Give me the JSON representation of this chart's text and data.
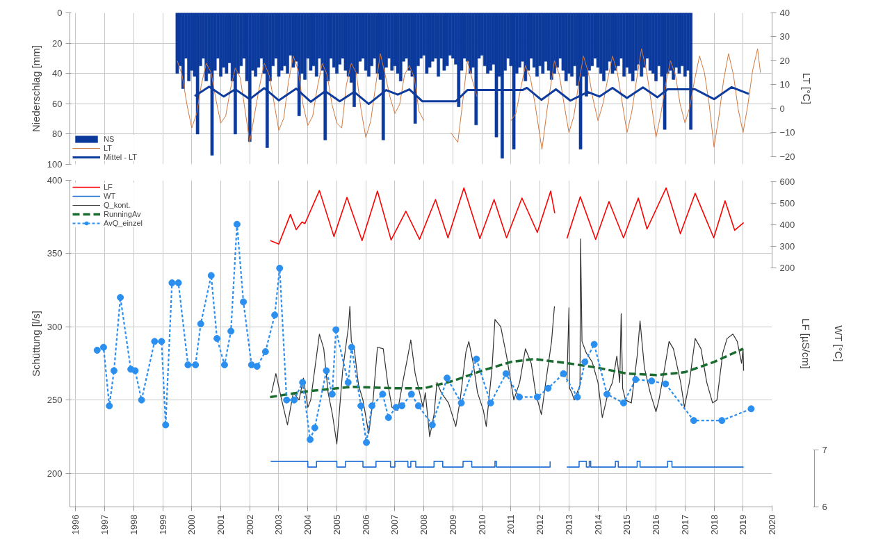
{
  "chart_data": [
    {
      "type": "line",
      "ylabel": "Niederschlag [mm]",
      "y2label": "LT [°C]",
      "xlim": [
        1995.8,
        2020
      ],
      "xticks": [
        1996,
        1997,
        1998,
        1999,
        2000,
        2001,
        2002,
        2003,
        2004,
        2005,
        2006,
        2007,
        2008,
        2009,
        2010,
        2011,
        2012,
        2013,
        2014,
        2015,
        2016,
        2017,
        2018,
        2019,
        2020
      ],
      "ylim": [
        100,
        0
      ],
      "yticks": [
        0,
        20,
        40,
        60,
        80,
        100
      ],
      "y2lim": [
        -23.2,
        40
      ],
      "y2ticks": [
        -20,
        -10,
        0,
        10,
        20,
        30,
        40
      ],
      "tick_labels": "y",
      "grid": true,
      "legend": "bottom left",
      "series": [
        {
          "name": "NS",
          "type": "bar",
          "color": "#0b3a9c",
          "x": [
            1999.5,
            1999.6,
            1999.7,
            1999.8,
            1999.9,
            2000.0,
            2000.1,
            2000.2,
            2000.3,
            2000.4,
            2000.5,
            2000.6,
            2000.7,
            2000.8,
            2000.9,
            2001.0,
            2001.1,
            2001.2,
            2001.3,
            2001.4,
            2001.5,
            2001.6,
            2001.7,
            2001.8,
            2001.9,
            2002.0,
            2002.1,
            2002.2,
            2002.3,
            2002.4,
            2002.5,
            2002.6,
            2002.7,
            2002.8,
            2002.9,
            2003.0,
            2003.1,
            2003.2,
            2003.3,
            2003.4,
            2003.5,
            2003.6,
            2003.7,
            2003.8,
            2003.9,
            2004.0,
            2004.1,
            2004.2,
            2004.3,
            2004.4,
            2004.5,
            2004.6,
            2004.7,
            2004.8,
            2004.9,
            2005.0,
            2005.1,
            2005.2,
            2005.3,
            2005.4,
            2005.5,
            2005.6,
            2005.7,
            2005.8,
            2005.9,
            2006.0,
            2006.1,
            2006.2,
            2006.3,
            2006.4,
            2006.5,
            2006.6,
            2006.7,
            2006.8,
            2006.9,
            2007.0,
            2007.1,
            2007.2,
            2007.3,
            2007.4,
            2007.5,
            2007.6,
            2007.7,
            2007.8,
            2007.9,
            2008.0,
            2008.1,
            2008.2,
            2008.3,
            2008.4,
            2008.5,
            2008.6,
            2008.7,
            2008.8,
            2008.9,
            2009.0,
            2009.1,
            2009.2,
            2009.3,
            2009.4,
            2009.5,
            2009.6,
            2009.7,
            2009.8,
            2009.9,
            2010.0,
            2010.1,
            2010.2,
            2010.3,
            2010.4,
            2010.5,
            2010.6,
            2010.7,
            2010.8,
            2010.9,
            2011.0,
            2011.1,
            2011.2,
            2011.3,
            2011.4,
            2011.5,
            2011.6,
            2011.7,
            2011.8,
            2011.9,
            2012.0,
            2012.1,
            2012.2,
            2012.3,
            2012.4,
            2012.5,
            2012.6,
            2012.7,
            2012.8,
            2012.9,
            2013.0,
            2013.1,
            2013.2,
            2013.3,
            2013.4,
            2013.5,
            2013.6,
            2013.7,
            2013.8,
            2013.9,
            2014.0,
            2014.1,
            2014.2,
            2014.3,
            2014.4,
            2014.5,
            2014.6,
            2014.7,
            2014.8,
            2014.9,
            2015.0,
            2015.1,
            2015.2,
            2015.3,
            2015.4,
            2015.5,
            2015.6,
            2015.7,
            2015.8,
            2015.9,
            2016.0,
            2016.1,
            2016.2,
            2016.3,
            2016.4,
            2016.5,
            2016.6,
            2016.7,
            2016.8,
            2016.9,
            2017.0,
            2017.1,
            2017.2
          ],
          "values": [
            40,
            35,
            50,
            30,
            45,
            38,
            42,
            80,
            35,
            30,
            45,
            40,
            94,
            38,
            30,
            42,
            36,
            40,
            33,
            45,
            80,
            40,
            35,
            30,
            45,
            85,
            38,
            42,
            36,
            30,
            40,
            89,
            45,
            35,
            30,
            42,
            38,
            35,
            40,
            28,
            36,
            32,
            68,
            40,
            44,
            30,
            38,
            35,
            42,
            30,
            38,
            84,
            45,
            30,
            36,
            40,
            34,
            30,
            38,
            42,
            46,
            62,
            40,
            32,
            30,
            38,
            42,
            35,
            30,
            40,
            44,
            84,
            36,
            30,
            38,
            35,
            40,
            45,
            32,
            30,
            38,
            42,
            73,
            35,
            30,
            28,
            40,
            36,
            32,
            30,
            42,
            30,
            38,
            35,
            28,
            30,
            34,
            62,
            38,
            30,
            32,
            40,
            36,
            74,
            30,
            28,
            35,
            40,
            38,
            34,
            82,
            42,
            96,
            38,
            30,
            35,
            90,
            40,
            36,
            32,
            45,
            38,
            30,
            36,
            42,
            35,
            40,
            32,
            38,
            44,
            40,
            36,
            30,
            38,
            45,
            40,
            42,
            35,
            48,
            90,
            42,
            55,
            38,
            35,
            30,
            36,
            40,
            45,
            38,
            32,
            40,
            38,
            35,
            30,
            42,
            36,
            40,
            45,
            38,
            34,
            42,
            36,
            30,
            38,
            40,
            45,
            35,
            42,
            77,
            40,
            38,
            44,
            36,
            40,
            35,
            42,
            38,
            77
          ]
        },
        {
          "name": "LT",
          "axis": "y2",
          "color": "#d2783f",
          "line_style": "solid",
          "x": [
            1999.5,
            1999.67,
            1999.83,
            2000.0,
            2000.17,
            2000.33,
            2000.5,
            2000.67,
            2000.83,
            2001.0,
            2001.17,
            2001.33,
            2001.5,
            2001.67,
            2001.83,
            2002.0,
            2002.17,
            2002.33,
            2002.5,
            2002.67,
            2002.83,
            2003.0,
            2003.17,
            2003.33,
            2003.5,
            2003.67,
            2003.83,
            2004.0,
            2004.17,
            2004.33,
            2004.5,
            2004.67,
            2004.83,
            2005.0,
            2005.17,
            2005.33,
            2005.5,
            2005.67,
            2005.83,
            2006.0,
            2006.17,
            2006.33,
            2006.5,
            2006.67,
            2006.83,
            2007.0,
            2007.17,
            2007.33,
            2007.5,
            2007.67,
            2007.83,
            2008.0,
            2008.5,
            2008.93,
            2009.17,
            2009.33,
            2009.5,
            2009.67,
            2009.83,
            2010.4,
            2011.0,
            2011.17,
            2011.33,
            2011.5,
            2011.67,
            2011.83,
            2012.07,
            2012.25,
            2012.5,
            2012.67,
            2012.83,
            2013.0,
            2013.17,
            2013.33,
            2013.5,
            2013.67,
            2013.83,
            2014.0,
            2014.17,
            2014.33,
            2014.5,
            2014.67,
            2014.83,
            2015.0,
            2015.17,
            2015.33,
            2015.5,
            2015.67,
            2015.83,
            2016.0,
            2016.17,
            2016.33,
            2016.5,
            2016.67,
            2016.83,
            2017.0,
            2017.17,
            2017.33,
            2017.5,
            2017.67,
            2017.83,
            2018.0,
            2018.17,
            2018.33,
            2018.5,
            2018.67,
            2018.83,
            2019.0,
            2019.17,
            2019.33,
            2019.5,
            2019.6
          ],
          "values": [
            20,
            14,
            2,
            -8,
            -2,
            10,
            19,
            15,
            4,
            -6,
            -3,
            8,
            17,
            13,
            0,
            -14,
            -2,
            9,
            19,
            14,
            3,
            -9,
            -4,
            11,
            22,
            16,
            2,
            -7,
            -3,
            9,
            19,
            14,
            2,
            -6,
            -8,
            10,
            19,
            15,
            0,
            -12,
            -5,
            9,
            23,
            14,
            5,
            -2,
            2,
            14,
            18,
            13,
            -1,
            -5,
            null,
            -10,
            -14,
            2,
            20,
            12,
            5,
            null,
            -5,
            -2,
            8,
            18,
            13,
            2,
            -17,
            0,
            20,
            14,
            2,
            -10,
            -3,
            10,
            22,
            15,
            4,
            -5,
            2,
            12,
            22,
            15,
            3,
            -10,
            -1,
            12,
            25,
            16,
            3,
            -12,
            -2,
            10,
            20,
            14,
            2,
            -6,
            1,
            12,
            22,
            15,
            2,
            -16,
            -3,
            12,
            23,
            14,
            0,
            -10,
            2,
            16,
            25,
            15
          ]
        },
        {
          "name": "Mittel - LT",
          "axis": "y2",
          "color": "#0d3b9e",
          "line_style": "solid",
          "x": [
            2000.1,
            2000.6,
            2001.1,
            2001.5,
            2002.0,
            2002.5,
            2003.0,
            2003.6,
            2004.1,
            2004.6,
            2005.1,
            2005.6,
            2006.1,
            2006.7,
            2007.1,
            2007.5,
            2007.95,
            2009.1,
            2009.5,
            2011.4,
            2011.55,
            2012.05,
            2012.55,
            2013.05,
            2013.65,
            2014.05,
            2014.5,
            2015.0,
            2015.55,
            2016.05,
            2016.4,
            2017.35,
            2018.0,
            2018.6,
            2019.2
          ],
          "values": [
            5.3,
            9.2,
            5.1,
            8.1,
            4.0,
            8.6,
            3.5,
            8.4,
            2.9,
            7.3,
            3.1,
            7.0,
            2.0,
            7.8,
            5.9,
            8.1,
            3.1,
            3.1,
            7.8,
            7.8,
            8.7,
            3.7,
            8.1,
            3.4,
            7.0,
            5.1,
            8.7,
            4.5,
            8.9,
            4.8,
            8.1,
            8.1,
            4.0,
            9.0,
            6.2
          ]
        }
      ]
    },
    {
      "type": "line",
      "ylabel": "Schüttung [l/s]",
      "y2label": "LF [µS/cm]",
      "y3label": "WT [°C]",
      "xlim": [
        1995.8,
        2020
      ],
      "xticks": [
        1996,
        1997,
        1998,
        1999,
        2000,
        2001,
        2002,
        2003,
        2004,
        2005,
        2006,
        2007,
        2008,
        2009,
        2010,
        2011,
        2012,
        2013,
        2014,
        2015,
        2016,
        2017,
        2018,
        2019,
        2020
      ],
      "ylim": [
        177,
        400
      ],
      "yticks": [
        200,
        250,
        300,
        350,
        400
      ],
      "y2lim": [
        -905,
        606
      ],
      "y2ticks": [
        200,
        300,
        400,
        500,
        600
      ],
      "y3lim": [
        6,
        11.73
      ],
      "y3ticks": [
        6,
        7
      ],
      "grid": true,
      "legend": "top left",
      "series": [
        {
          "name": "LF",
          "axis": "y2",
          "color": "#ff0000",
          "line_style": "solid",
          "x": [
            2002.71,
            2003.0,
            2003.4,
            2003.6,
            2003.8,
            2003.9,
            2004.4,
            2004.9,
            2005.35,
            2005.87,
            2006.4,
            2006.87,
            2007.38,
            2007.85,
            2008.4,
            2008.83,
            2009.38,
            2009.93,
            2010.42,
            2010.85,
            2011.38,
            2011.91,
            2012.37,
            2012.51,
            2012.7,
            2012.93,
            2013.39,
            2013.92,
            2014.38,
            2014.88,
            2015.39,
            2015.69,
            2016.35,
            2016.84,
            2017.35,
            2017.99,
            2018.38,
            2018.71,
            2019.02
          ],
          "values": [
            327,
            311,
            448,
            378,
            413,
            406,
            559,
            346,
            527,
            327,
            556,
            330,
            463,
            333,
            517,
            340,
            571,
            337,
            517,
            340,
            524,
            365,
            556,
            454,
            null,
            337,
            530,
            333,
            508,
            340,
            524,
            381,
            571,
            359,
            546,
            340,
            511,
            375,
            410
          ]
        },
        {
          "name": "WT",
          "type": "step",
          "axis": "y3",
          "color": "#1f6fd6",
          "line_style": "solid",
          "x": [
            2002.72,
            2004.0,
            2004.3,
            2005.0,
            2005.3,
            2005.9,
            2006.35,
            2006.85,
            2007.0,
            2007.45,
            2007.55,
            2007.72,
            2008.35,
            2008.65,
            2009.35,
            2009.65,
            2010.45,
            2010.5,
            2012.35,
            2012.5,
            2012.93,
            2013.35,
            2013.6,
            2013.7,
            2013.75,
            2014.6,
            2014.7,
            2015.35,
            2015.45,
            2016.4,
            2016.55,
            2019.02
          ],
          "values": [
            6.8,
            6.7,
            6.8,
            6.7,
            6.8,
            6.7,
            6.8,
            6.7,
            6.8,
            6.7,
            6.8,
            6.7,
            6.8,
            6.7,
            6.8,
            6.7,
            6.8,
            6.7,
            6.8,
            null,
            6.7,
            6.8,
            6.7,
            6.8,
            6.7,
            6.8,
            6.7,
            6.8,
            6.7,
            6.8,
            6.7,
            6.7
          ]
        },
        {
          "name": "Q_kont.",
          "color": "#333333",
          "line_style": "solid",
          "x": [
            2002.75,
            2002.9,
            2003.1,
            2003.3,
            2003.5,
            2003.7,
            2003.85,
            2004.0,
            2004.1,
            2004.4,
            2004.55,
            2004.7,
            2004.85,
            2005.0,
            2005.2,
            2005.4,
            2005.45,
            2005.5,
            2005.6,
            2005.75,
            2005.9,
            2006.1,
            2006.25,
            2006.4,
            2006.6,
            2006.75,
            2006.9,
            2007.1,
            2007.3,
            2007.4,
            2007.55,
            2007.7,
            2007.97,
            2008.05,
            2008.2,
            2008.35,
            2008.45,
            2008.6,
            2008.85,
            2009.1,
            2009.25,
            2009.45,
            2009.55,
            2009.7,
            2009.85,
            2010.05,
            2010.15,
            2010.35,
            2010.45,
            2010.65,
            2010.85,
            2011.0,
            2011.1,
            2011.3,
            2011.5,
            2011.7,
            2011.85,
            2012.05,
            2012.2,
            2012.4,
            2012.5,
            2012.7,
            2012.93,
            2013.0,
            2013.02,
            2013.1,
            2013.18,
            2013.38,
            2013.4,
            2013.45,
            2013.6,
            2013.8,
            2014.0,
            2014.15,
            2014.35,
            2014.5,
            2014.65,
            2014.75,
            2014.8,
            2014.85,
            2014.95,
            2015.15,
            2015.35,
            2015.45,
            2015.6,
            2015.8,
            2016.0,
            2016.1,
            2016.3,
            2016.45,
            2016.6,
            2016.85,
            2016.98,
            2017.15,
            2017.35,
            2017.55,
            2017.75,
            2017.95,
            2018.1,
            2018.3,
            2018.45,
            2018.65,
            2018.8,
            2018.95,
            2019.0,
            2019.02
          ],
          "values": [
            255,
            268,
            250,
            233,
            255,
            250,
            265,
            245,
            250,
            295,
            285,
            255,
            240,
            220,
            270,
            300,
            314,
            290,
            285,
            260,
            250,
            227,
            250,
            286,
            285,
            262,
            245,
            243,
            265,
            275,
            291,
            268,
            245,
            255,
            225,
            240,
            262,
            255,
            248,
            232,
            250,
            283,
            290,
            275,
            255,
            243,
            232,
            272,
            305,
            300,
            280,
            262,
            250,
            262,
            285,
            275,
            255,
            240,
            262,
            290,
            314,
            null,
            262,
            313,
            258,
            255,
            250,
            260,
            360,
            290,
            282,
            276,
            262,
            238,
            255,
            262,
            280,
            262,
            309,
            258,
            250,
            248,
            280,
            304,
            272,
            255,
            242,
            250,
            272,
            290,
            285,
            262,
            245,
            262,
            292,
            285,
            262,
            248,
            250,
            282,
            292,
            295,
            290,
            275,
            285,
            270
          ]
        },
        {
          "name": "RunningAv",
          "color": "#1a6b30",
          "line_style": "dashed",
          "x": [
            2002.7,
            2004,
            2005.5,
            2007,
            2008,
            2009,
            2010,
            2011,
            2011.8,
            2013,
            2014,
            2015,
            2016,
            2017,
            2018,
            2019
          ],
          "values": [
            252,
            256,
            259,
            258,
            258,
            263,
            270,
            276,
            278,
            275,
            272,
            268,
            267,
            269,
            276,
            285
          ]
        },
        {
          "name": "AvQ_einzel",
          "color": "#2b8ff0",
          "line_style": "dotted",
          "marker": "circle",
          "x": [
            1996.74,
            1996.96,
            1997.16,
            1997.32,
            1997.54,
            1997.9,
            1998.05,
            1998.27,
            1998.72,
            1998.96,
            1999.1,
            1999.32,
            1999.54,
            1999.87,
            2000.13,
            2000.31,
            2000.67,
            2000.87,
            2001.13,
            2001.35,
            2001.56,
            2001.78,
            2002.06,
            2002.25,
            2002.54,
            2002.86,
            2003.03,
            2003.27,
            2003.53,
            2003.82,
            2004.08,
            2004.24,
            2004.64,
            2004.84,
            2004.97,
            2005.39,
            2005.51,
            2005.83,
            2006.02,
            2006.21,
            2006.58,
            2006.78,
            2007.04,
            2007.24,
            2007.57,
            2007.81,
            2008.29,
            2008.8,
            2009.29,
            2009.81,
            2010.3,
            2010.83,
            2011.29,
            2011.91,
            2012.28,
            2012.81,
            2013.29,
            2013.55,
            2013.87,
            2014.31,
            2014.88,
            2015.3,
            2015.85,
            2016.33,
            2017.3,
            2018.27,
            2019.28
          ],
          "values": [
            284,
            286,
            246,
            270,
            320,
            271,
            270,
            250,
            290,
            290,
            233,
            330,
            330,
            274,
            274,
            302,
            335,
            292,
            274,
            297,
            370,
            317,
            274,
            273,
            283,
            308,
            340,
            250,
            250,
            262,
            223,
            231,
            270,
            254,
            298,
            262,
            286,
            246,
            221,
            246,
            254,
            238,
            245,
            246,
            254,
            246,
            233,
            265,
            248,
            278,
            248,
            268,
            252,
            252,
            258,
            268,
            252,
            276,
            288,
            254,
            248,
            264,
            263,
            261,
            236,
            236,
            244
          ]
        }
      ]
    }
  ]
}
